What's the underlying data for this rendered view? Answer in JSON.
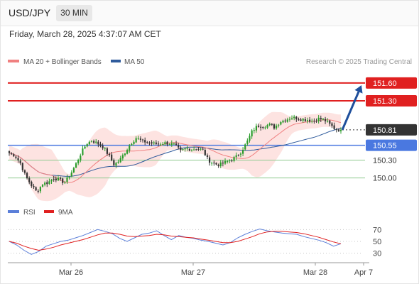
{
  "header": {
    "symbol": "USD/JPY",
    "timeframe": "30 MIN",
    "datetime": "Friday, March 28, 2025 4:37:07 AM CET"
  },
  "colors": {
    "bull": "#2c9c2c",
    "bear": "#333333",
    "ma20": "#f08080",
    "band_fill": "#fde0de",
    "ma50": "#2f5b9c",
    "resistance": "#e02020",
    "support_blue": "#4a78e0",
    "support_green": "#8fca8f",
    "arrow": "#1f4f9c",
    "rsi": "#5b7fd9",
    "rsi_ma": "#e02020"
  },
  "chart_data": [
    {
      "type": "candlestick",
      "legend": [
        {
          "label": "MA 20 + Bollinger Bands",
          "color": "#f08080"
        },
        {
          "label": "MA 50",
          "color": "#2f5b9c"
        }
      ],
      "watermark": "Research © 2025 Trading Central",
      "x_labels": [
        "Mar 26",
        "Mar 27",
        "Mar 28",
        "Apr 7"
      ],
      "ylim": [
        149.6,
        151.85
      ],
      "levels": [
        {
          "label": "151.60",
          "value": 151.6,
          "kind": "resistance"
        },
        {
          "label": "151.30",
          "value": 151.3,
          "kind": "resistance"
        },
        {
          "label": "150.81",
          "value": 150.81,
          "kind": "last"
        },
        {
          "label": "150.55",
          "value": 150.55,
          "kind": "support_blue"
        },
        {
          "label": "150.30",
          "value": 150.3,
          "kind": "support_green"
        },
        {
          "label": "150.00",
          "value": 150.0,
          "kind": "support_green"
        }
      ],
      "projection": {
        "from": 150.81,
        "to": 151.5,
        "direction": "up"
      },
      "close_path": [
        [
          0,
          150.42
        ],
        [
          5,
          150.38
        ],
        [
          10,
          150.25
        ],
        [
          15,
          150.02
        ],
        [
          20,
          149.88
        ],
        [
          25,
          149.76
        ],
        [
          30,
          149.9
        ],
        [
          35,
          149.92
        ],
        [
          40,
          150.0
        ],
        [
          45,
          149.97
        ],
        [
          50,
          149.92
        ],
        [
          55,
          150.05
        ],
        [
          60,
          150.22
        ],
        [
          65,
          150.42
        ],
        [
          70,
          150.58
        ],
        [
          75,
          150.63
        ],
        [
          80,
          150.58
        ],
        [
          85,
          150.52
        ],
        [
          90,
          150.38
        ],
        [
          95,
          150.22
        ],
        [
          100,
          150.3
        ],
        [
          105,
          150.44
        ],
        [
          110,
          150.58
        ],
        [
          115,
          150.68
        ],
        [
          120,
          150.62
        ],
        [
          125,
          150.6
        ],
        [
          130,
          150.58
        ],
        [
          135,
          150.57
        ],
        [
          140,
          150.59
        ],
        [
          145,
          150.58
        ],
        [
          150,
          150.55
        ],
        [
          155,
          150.45
        ],
        [
          160,
          150.5
        ],
        [
          165,
          150.48
        ],
        [
          170,
          150.5
        ],
        [
          175,
          150.47
        ],
        [
          180,
          150.3
        ],
        [
          185,
          150.24
        ],
        [
          190,
          150.22
        ],
        [
          195,
          150.26
        ],
        [
          200,
          150.3
        ],
        [
          205,
          150.35
        ],
        [
          210,
          150.45
        ],
        [
          215,
          150.6
        ],
        [
          220,
          150.8
        ],
        [
          225,
          150.88
        ],
        [
          230,
          150.87
        ],
        [
          235,
          150.9
        ],
        [
          240,
          150.85
        ],
        [
          245,
          150.95
        ],
        [
          250,
          150.98
        ],
        [
          255,
          151.02
        ],
        [
          260,
          151.01
        ],
        [
          265,
          150.99
        ],
        [
          270,
          150.98
        ],
        [
          275,
          150.96
        ],
        [
          280,
          151.0
        ],
        [
          285,
          150.98
        ],
        [
          290,
          150.9
        ],
        [
          295,
          150.82
        ],
        [
          300,
          150.81
        ]
      ]
    },
    {
      "type": "line",
      "legend": [
        {
          "label": "RSI",
          "color": "#5b7fd9"
        },
        {
          "label": "9MA",
          "color": "#e02020"
        }
      ],
      "ylim": [
        20,
        80
      ],
      "y_ticks": [
        {
          "label": "70",
          "value": 70
        },
        {
          "label": "50",
          "value": 50
        },
        {
          "label": "30",
          "value": 30
        }
      ],
      "series": [
        {
          "name": "RSI",
          "values": [
            50,
            44,
            35,
            28,
            33,
            42,
            46,
            50,
            52,
            56,
            60,
            65,
            70,
            67,
            63,
            55,
            50,
            56,
            62,
            64,
            68,
            60,
            53,
            60,
            57,
            55,
            52,
            50,
            47,
            44,
            48,
            56,
            62,
            67,
            71,
            68,
            66,
            64,
            63,
            62,
            58,
            55,
            52,
            48,
            42,
            46
          ]
        },
        {
          "name": "9MA",
          "values": [
            50,
            47,
            42,
            38,
            35,
            37,
            40,
            44,
            47,
            50,
            53,
            57,
            61,
            64,
            64,
            62,
            59,
            58,
            59,
            60,
            62,
            61,
            59,
            58,
            57,
            56,
            54,
            52,
            50,
            48,
            48,
            50,
            54,
            58,
            63,
            66,
            67,
            67,
            66,
            65,
            63,
            60,
            57,
            53,
            49,
            46
          ]
        }
      ]
    }
  ]
}
